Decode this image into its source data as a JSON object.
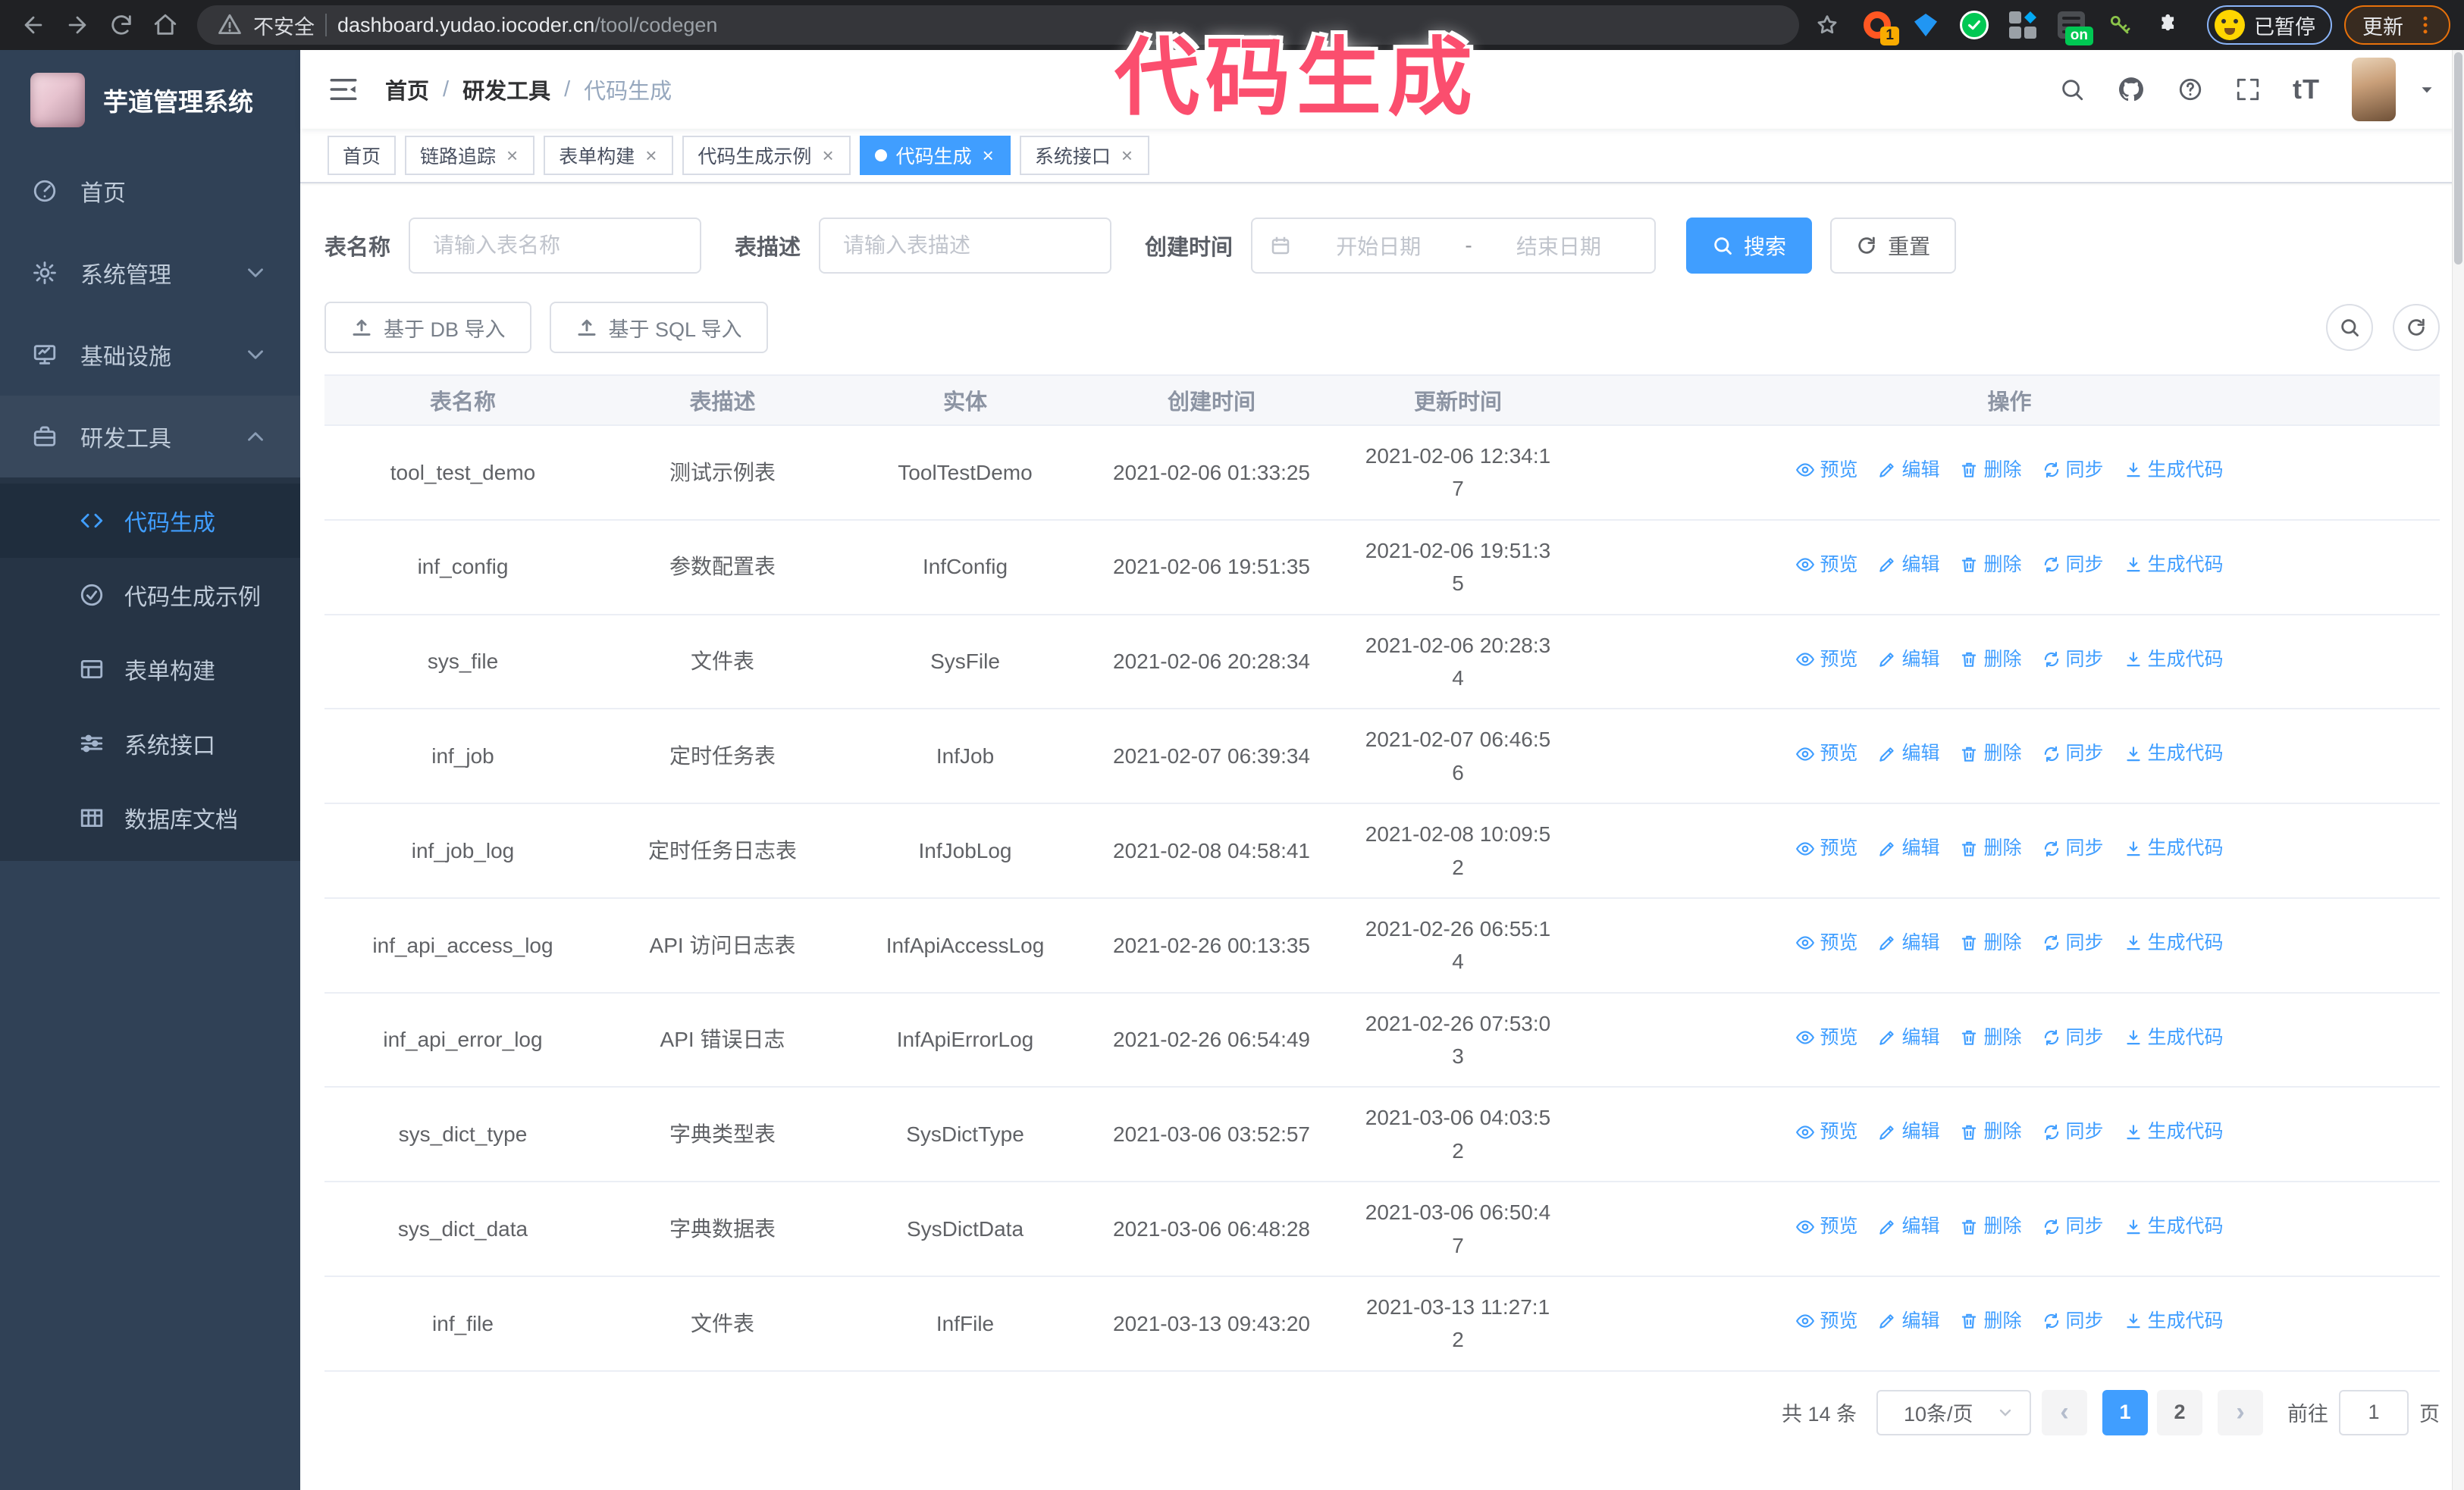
{
  "overlay": {
    "text": "代码生成",
    "color": "#fb4e6e"
  },
  "browser": {
    "security_label": "不安全",
    "url_host": "dashboard.yudao.iocoder.cn",
    "url_path": "/tool/codegen",
    "ext_badge_count": "1",
    "ext_badge_on": "on",
    "paused_chip_label": "已暂停",
    "update_button_label": "更新"
  },
  "sidebar": {
    "app_title": "芋道管理系统",
    "items": [
      {
        "label": "首页",
        "icon": "dashboard-icon",
        "chevron": null
      },
      {
        "label": "系统管理",
        "icon": "gear-icon",
        "chevron": "down"
      },
      {
        "label": "基础设施",
        "icon": "monitor-icon",
        "chevron": "down"
      },
      {
        "label": "研发工具",
        "icon": "toolbox-icon",
        "chevron": "up",
        "expanded": true
      }
    ],
    "subitems": [
      {
        "label": "代码生成",
        "icon": "code-icon",
        "active": true
      },
      {
        "label": "代码生成示例",
        "icon": "badge-check-icon"
      },
      {
        "label": "表单构建",
        "icon": "form-icon"
      },
      {
        "label": "系统接口",
        "icon": "sliders-icon"
      },
      {
        "label": "数据库文档",
        "icon": "table-grid-icon"
      }
    ]
  },
  "navbar": {
    "breadcrumb": [
      "首页",
      "研发工具",
      "代码生成"
    ],
    "breadcrumb_separator": "/",
    "font_size_label": "tT"
  },
  "tabs": [
    {
      "label": "首页",
      "closable": false,
      "active": false
    },
    {
      "label": "链路追踪",
      "closable": true,
      "active": false
    },
    {
      "label": "表单构建",
      "closable": true,
      "active": false
    },
    {
      "label": "代码生成示例",
      "closable": true,
      "active": false
    },
    {
      "label": "代码生成",
      "closable": true,
      "active": true
    },
    {
      "label": "系统接口",
      "closable": true,
      "active": false
    }
  ],
  "glyphs": {
    "tab_close": "×",
    "pager_prev": "‹",
    "pager_next": "›"
  },
  "filters": {
    "table_name_label": "表名称",
    "table_name_placeholder": "请输入表名称",
    "table_desc_label": "表描述",
    "table_desc_placeholder": "请输入表描述",
    "create_time_label": "创建时间",
    "date_start_placeholder": "开始日期",
    "date_separator": "-",
    "date_end_placeholder": "结束日期",
    "search_label": "搜索",
    "reset_label": "重置"
  },
  "toolbar": {
    "import_db_label": "基于 DB 导入",
    "import_sql_label": "基于 SQL 导入"
  },
  "table": {
    "columns": [
      "表名称",
      "表描述",
      "实体",
      "创建时间",
      "更新时间",
      "操作"
    ],
    "actions": [
      {
        "label": "预览",
        "icon": "eye-icon",
        "name": "preview"
      },
      {
        "label": "编辑",
        "icon": "edit-icon",
        "name": "edit"
      },
      {
        "label": "删除",
        "icon": "trash-icon",
        "name": "delete"
      },
      {
        "label": "同步",
        "icon": "sync-icon",
        "name": "sync"
      },
      {
        "label": "生成代码",
        "icon": "download-icon",
        "name": "generate-code"
      }
    ],
    "rows": [
      {
        "name": "tool_test_demo",
        "desc": "测试示例表",
        "entity": "ToolTestDemo",
        "created": "2021-02-06 01:33:25",
        "updated": "2021-02-06 12:34:17"
      },
      {
        "name": "inf_config",
        "desc": "参数配置表",
        "entity": "InfConfig",
        "created": "2021-02-06 19:51:35",
        "updated": "2021-02-06 19:51:35"
      },
      {
        "name": "sys_file",
        "desc": "文件表",
        "entity": "SysFile",
        "created": "2021-02-06 20:28:34",
        "updated": "2021-02-06 20:28:34"
      },
      {
        "name": "inf_job",
        "desc": "定时任务表",
        "entity": "InfJob",
        "created": "2021-02-07 06:39:34",
        "updated": "2021-02-07 06:46:56"
      },
      {
        "name": "inf_job_log",
        "desc": "定时任务日志表",
        "entity": "InfJobLog",
        "created": "2021-02-08 04:58:41",
        "updated": "2021-02-08 10:09:52"
      },
      {
        "name": "inf_api_access_log",
        "desc": "API 访问日志表",
        "entity": "InfApiAccessLog",
        "created": "2021-02-26 00:13:35",
        "updated": "2021-02-26 06:55:14"
      },
      {
        "name": "inf_api_error_log",
        "desc": "API 错误日志",
        "entity": "InfApiErrorLog",
        "created": "2021-02-26 06:54:49",
        "updated": "2021-02-26 07:53:03"
      },
      {
        "name": "sys_dict_type",
        "desc": "字典类型表",
        "entity": "SysDictType",
        "created": "2021-03-06 03:52:57",
        "updated": "2021-03-06 04:03:52"
      },
      {
        "name": "sys_dict_data",
        "desc": "字典数据表",
        "entity": "SysDictData",
        "created": "2021-03-06 06:48:28",
        "updated": "2021-03-06 06:50:47"
      },
      {
        "name": "inf_file",
        "desc": "文件表",
        "entity": "InfFile",
        "created": "2021-03-13 09:43:20",
        "updated": "2021-03-13 11:27:12"
      }
    ]
  },
  "pagination": {
    "total_label": "共 14 条",
    "page_size_label": "10条/页",
    "pages": [
      "1",
      "2"
    ],
    "active_page": "1",
    "goto_label": "前往",
    "goto_value": "1",
    "page_suffix_label": "页"
  },
  "colors": {
    "primary": "#409eff",
    "sidebar_bg": "#304156",
    "overlay_pink": "#fb4e6e"
  }
}
